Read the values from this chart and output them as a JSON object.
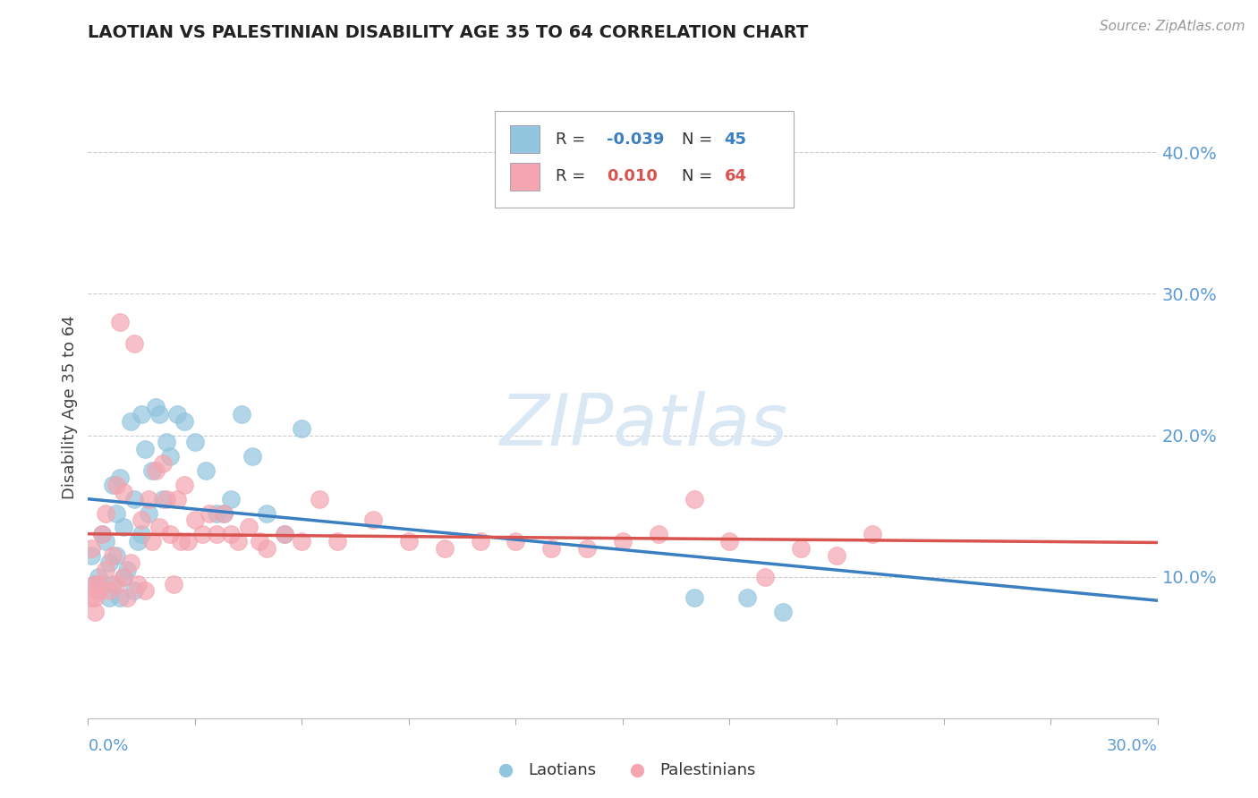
{
  "title": "LAOTIAN VS PALESTINIAN DISABILITY AGE 35 TO 64 CORRELATION CHART",
  "source_text": "Source: ZipAtlas.com",
  "ylabel": "Disability Age 35 to 64",
  "xlim": [
    0.0,
    0.3
  ],
  "ylim": [
    0.0,
    0.44
  ],
  "ytick_vals": [
    0.1,
    0.2,
    0.3,
    0.4
  ],
  "ytick_labels": [
    "10.0%",
    "20.0%",
    "30.0%",
    "40.0%"
  ],
  "legend_blue_r": "-0.039",
  "legend_blue_n": "45",
  "legend_pink_r": "0.010",
  "legend_pink_n": "64",
  "blue_color": "#92c5de",
  "pink_color": "#f4a5b0",
  "trend_blue_color": "#3a7fc1",
  "trend_pink_color": "#d9534f",
  "tick_color": "#5b9bd5",
  "watermark_color": "#dae8f5",
  "laotians_x": [
    0.001,
    0.002,
    0.003,
    0.004,
    0.005,
    0.006,
    0.006,
    0.007,
    0.007,
    0.008,
    0.008,
    0.009,
    0.009,
    0.01,
    0.01,
    0.011,
    0.012,
    0.013,
    0.013,
    0.014,
    0.015,
    0.015,
    0.016,
    0.017,
    0.018,
    0.019,
    0.02,
    0.021,
    0.022,
    0.023,
    0.025,
    0.027,
    0.03,
    0.033,
    0.036,
    0.038,
    0.04,
    0.043,
    0.046,
    0.05,
    0.055,
    0.06,
    0.17,
    0.185,
    0.195
  ],
  "laotians_y": [
    0.115,
    0.095,
    0.1,
    0.13,
    0.125,
    0.085,
    0.11,
    0.165,
    0.095,
    0.115,
    0.145,
    0.085,
    0.17,
    0.1,
    0.135,
    0.105,
    0.21,
    0.09,
    0.155,
    0.125,
    0.13,
    0.215,
    0.19,
    0.145,
    0.175,
    0.22,
    0.215,
    0.155,
    0.195,
    0.185,
    0.215,
    0.21,
    0.195,
    0.175,
    0.145,
    0.145,
    0.155,
    0.215,
    0.185,
    0.145,
    0.13,
    0.205,
    0.085,
    0.085,
    0.075
  ],
  "palestinians_x": [
    0.001,
    0.002,
    0.003,
    0.004,
    0.005,
    0.005,
    0.006,
    0.007,
    0.008,
    0.008,
    0.009,
    0.01,
    0.01,
    0.011,
    0.012,
    0.013,
    0.014,
    0.015,
    0.016,
    0.017,
    0.018,
    0.019,
    0.02,
    0.021,
    0.022,
    0.023,
    0.024,
    0.025,
    0.026,
    0.027,
    0.028,
    0.03,
    0.032,
    0.034,
    0.036,
    0.038,
    0.04,
    0.042,
    0.045,
    0.048,
    0.05,
    0.055,
    0.06,
    0.065,
    0.07,
    0.08,
    0.09,
    0.1,
    0.11,
    0.12,
    0.13,
    0.14,
    0.15,
    0.16,
    0.17,
    0.18,
    0.19,
    0.2,
    0.21,
    0.22,
    0.001,
    0.002,
    0.002,
    0.003
  ],
  "palestinians_y": [
    0.12,
    0.085,
    0.095,
    0.13,
    0.105,
    0.145,
    0.09,
    0.115,
    0.095,
    0.165,
    0.28,
    0.1,
    0.16,
    0.085,
    0.11,
    0.265,
    0.095,
    0.14,
    0.09,
    0.155,
    0.125,
    0.175,
    0.135,
    0.18,
    0.155,
    0.13,
    0.095,
    0.155,
    0.125,
    0.165,
    0.125,
    0.14,
    0.13,
    0.145,
    0.13,
    0.145,
    0.13,
    0.125,
    0.135,
    0.125,
    0.12,
    0.13,
    0.125,
    0.155,
    0.125,
    0.14,
    0.125,
    0.12,
    0.125,
    0.125,
    0.12,
    0.12,
    0.125,
    0.13,
    0.155,
    0.125,
    0.1,
    0.12,
    0.115,
    0.13,
    0.085,
    0.075,
    0.095,
    0.09
  ]
}
